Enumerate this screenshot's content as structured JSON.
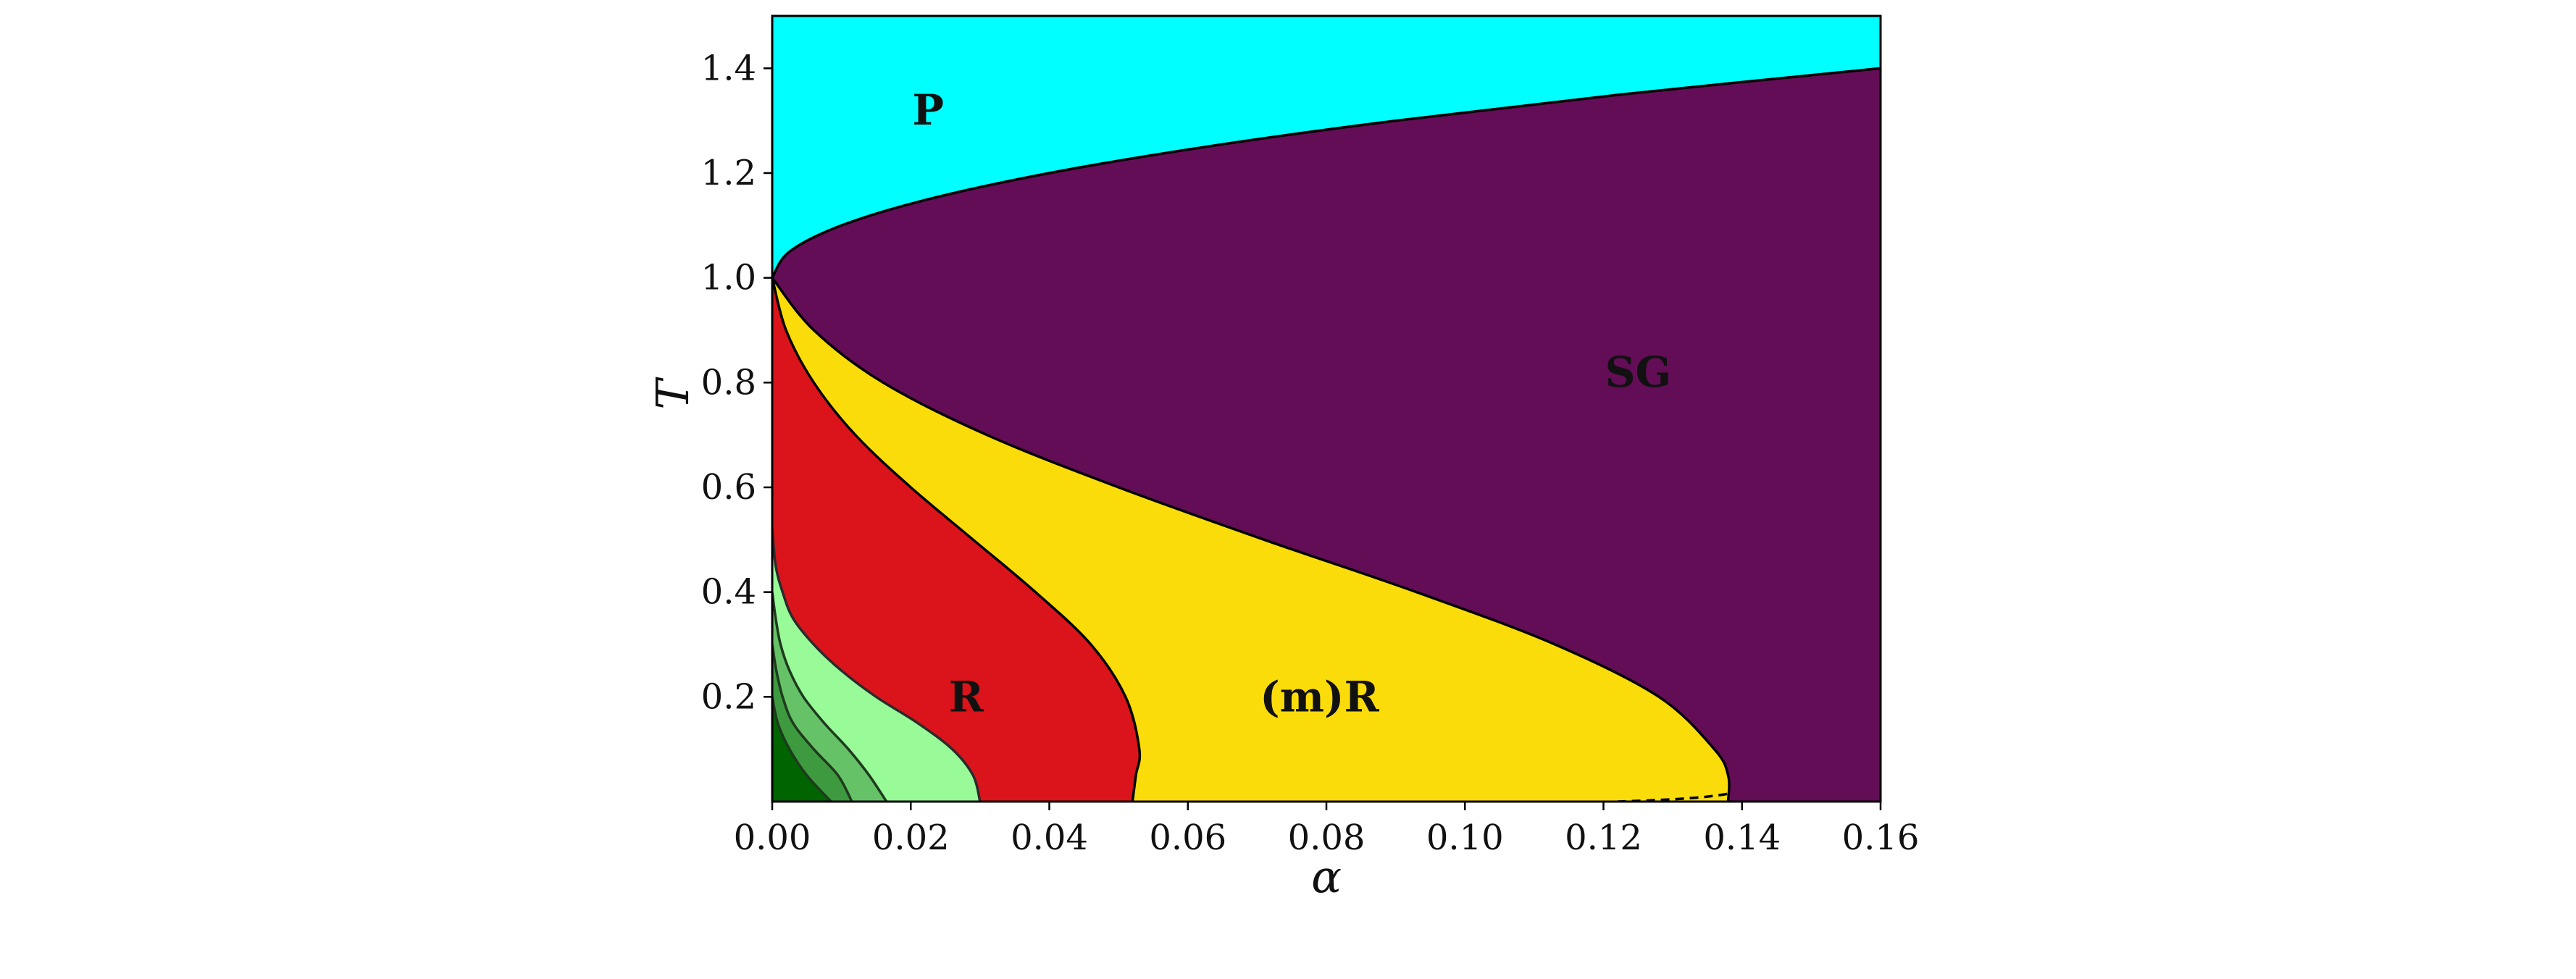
{
  "chart_data": {
    "type": "area",
    "title": "",
    "xlabel": "α",
    "ylabel": "T",
    "xlim": [
      0.0,
      0.16
    ],
    "ylim": [
      0.0,
      1.5
    ],
    "xticks": [
      "0.00",
      "0.02",
      "0.04",
      "0.06",
      "0.08",
      "0.10",
      "0.12",
      "0.14",
      "0.16"
    ],
    "yticks": [
      "0.2",
      "0.4",
      "0.6",
      "0.8",
      "1.0",
      "1.2",
      "1.4"
    ],
    "grid": false,
    "regions": [
      {
        "label": "P",
        "color": "#00ffff"
      },
      {
        "label": "SG",
        "color": "#620d56"
      },
      {
        "label": "(m)R",
        "color": "#fbdc0b"
      },
      {
        "label": "R",
        "color": "#da141a"
      },
      {
        "label": "",
        "color": "#98fb98"
      },
      {
        "label": "",
        "color": "#66c266"
      },
      {
        "label": "",
        "color": "#3e9a3e"
      },
      {
        "label": "",
        "color": "#006400"
      }
    ],
    "boundaries": {
      "P_SG": {
        "T": [
          1.0,
          1.05,
          1.1,
          1.15,
          1.2,
          1.25,
          1.3,
          1.35,
          1.4
        ],
        "alpha": [
          0.0,
          0.0025,
          0.01,
          0.0225,
          0.04,
          0.0625,
          0.09,
          0.1225,
          0.16
        ]
      },
      "SG_mR": {
        "T": [
          1.0,
          0.9,
          0.8,
          0.7,
          0.6,
          0.5,
          0.4,
          0.3,
          0.2,
          0.1,
          0.05,
          0.0
        ],
        "alpha": [
          0.0,
          0.006,
          0.016,
          0.031,
          0.05,
          0.071,
          0.093,
          0.113,
          0.128,
          0.136,
          0.138,
          0.138
        ]
      },
      "mR_R": {
        "T": [
          1.0,
          0.9,
          0.8,
          0.7,
          0.6,
          0.5,
          0.4,
          0.3,
          0.2,
          0.1,
          0.05,
          0.0
        ],
        "alpha": [
          0.0,
          0.002,
          0.006,
          0.012,
          0.02,
          0.029,
          0.038,
          0.046,
          0.051,
          0.053,
          0.0525,
          0.052
        ]
      },
      "R_green1": {
        "T": [
          0.52,
          0.45,
          0.4,
          0.35,
          0.3,
          0.25,
          0.2,
          0.15,
          0.1,
          0.05,
          0.0
        ],
        "alpha": [
          0.0,
          0.0005,
          0.0015,
          0.003,
          0.006,
          0.01,
          0.015,
          0.021,
          0.026,
          0.029,
          0.03
        ]
      },
      "green1_green2": {
        "T": [
          0.4,
          0.35,
          0.3,
          0.25,
          0.2,
          0.15,
          0.1,
          0.05,
          0.0
        ],
        "alpha": [
          0.0,
          0.0005,
          0.0012,
          0.0025,
          0.0045,
          0.0075,
          0.011,
          0.014,
          0.0165
        ]
      },
      "green2_green3": {
        "T": [
          0.3,
          0.25,
          0.2,
          0.15,
          0.1,
          0.05,
          0.0
        ],
        "alpha": [
          0.0,
          0.0006,
          0.0015,
          0.003,
          0.006,
          0.0095,
          0.0115
        ]
      },
      "green3_green4": {
        "T": [
          0.2,
          0.15,
          0.1,
          0.05,
          0.0
        ],
        "alpha": [
          0.0,
          0.0008,
          0.0025,
          0.005,
          0.0085
        ]
      },
      "dashed": {
        "alpha": [
          0.122,
          0.128,
          0.133,
          0.136,
          0.138
        ],
        "T": [
          0.0,
          0.003,
          0.007,
          0.011,
          0.015
        ]
      }
    },
    "annotations": [
      {
        "text": "P",
        "x": 0.0225,
        "y": 1.32
      },
      {
        "text": "SG",
        "x": 0.125,
        "y": 0.82
      },
      {
        "text": "R",
        "x": 0.028,
        "y": 0.2
      },
      {
        "text": "(m)R",
        "x": 0.079,
        "y": 0.2
      }
    ]
  }
}
